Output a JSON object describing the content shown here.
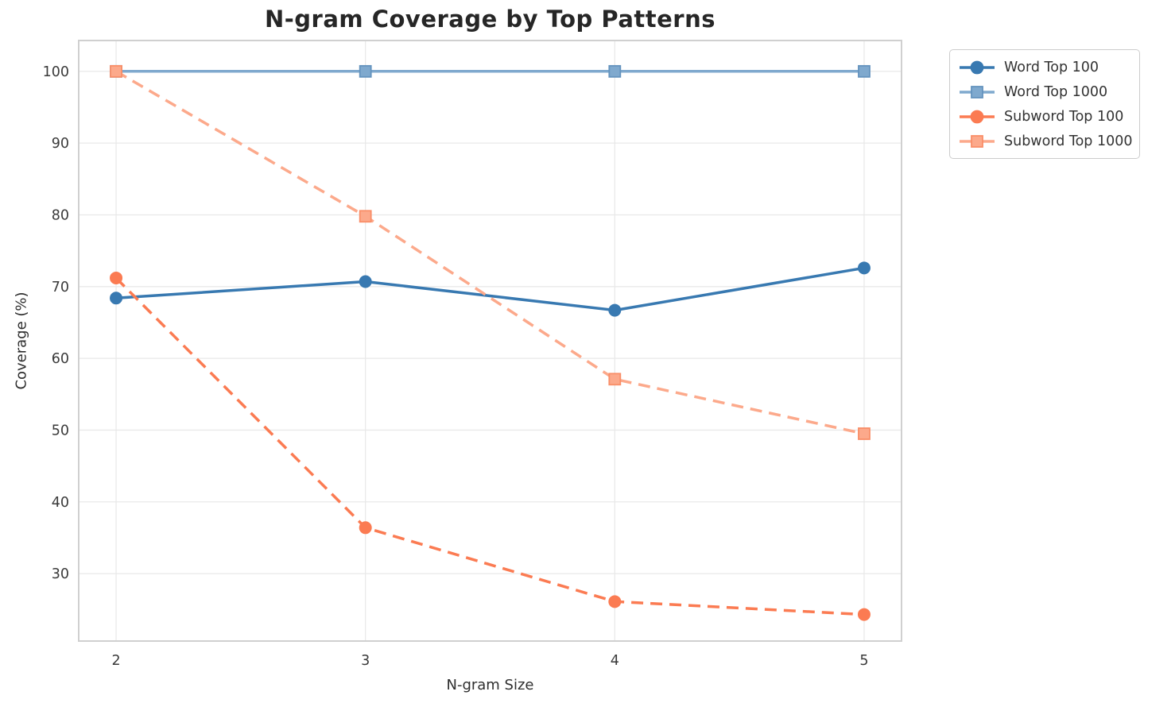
{
  "title": "N-gram Coverage by Top Patterns",
  "chart_data": {
    "type": "line",
    "title": "N-gram Coverage by Top Patterns",
    "xlabel": "N-gram Size",
    "ylabel": "Coverage (%)",
    "x": [
      2,
      3,
      4,
      5
    ],
    "series": [
      {
        "name": "Word Top 100",
        "values": [
          68.4,
          70.7,
          66.7,
          72.6
        ],
        "color": "#3879B1",
        "edge_color": "#3879B1",
        "marker": "circle",
        "line_style": "solid"
      },
      {
        "name": "Word Top 1000",
        "values": [
          100,
          100,
          100,
          100
        ],
        "color": "#7FA9CE",
        "edge_color": "#6493BE",
        "marker": "square",
        "line_style": "solid"
      },
      {
        "name": "Subword Top 100",
        "values": [
          71.2,
          36.4,
          26.1,
          24.3
        ],
        "color": "#FB7B52",
        "edge_color": "#FB7B52",
        "marker": "circle",
        "line_style": "dashed"
      },
      {
        "name": "Subword Top 1000",
        "values": [
          100,
          79.8,
          57.1,
          49.5
        ],
        "color": "#FCA98B",
        "edge_color": "#F98E68",
        "marker": "square",
        "line_style": "dashed"
      }
    ],
    "x_ticks": [
      "2",
      "3",
      "4",
      "5"
    ],
    "y_ticks": [
      30,
      40,
      50,
      60,
      70,
      80,
      90,
      100
    ],
    "xlim": [
      1.85,
      5.15
    ],
    "ylim": [
      20.6,
      104.3
    ],
    "grid": true,
    "legend_position": "outside-top-right",
    "grid_color": "#e9e9e9",
    "spine_color": "#d0d0d0",
    "tick_label_color": "#3a3a3a"
  }
}
